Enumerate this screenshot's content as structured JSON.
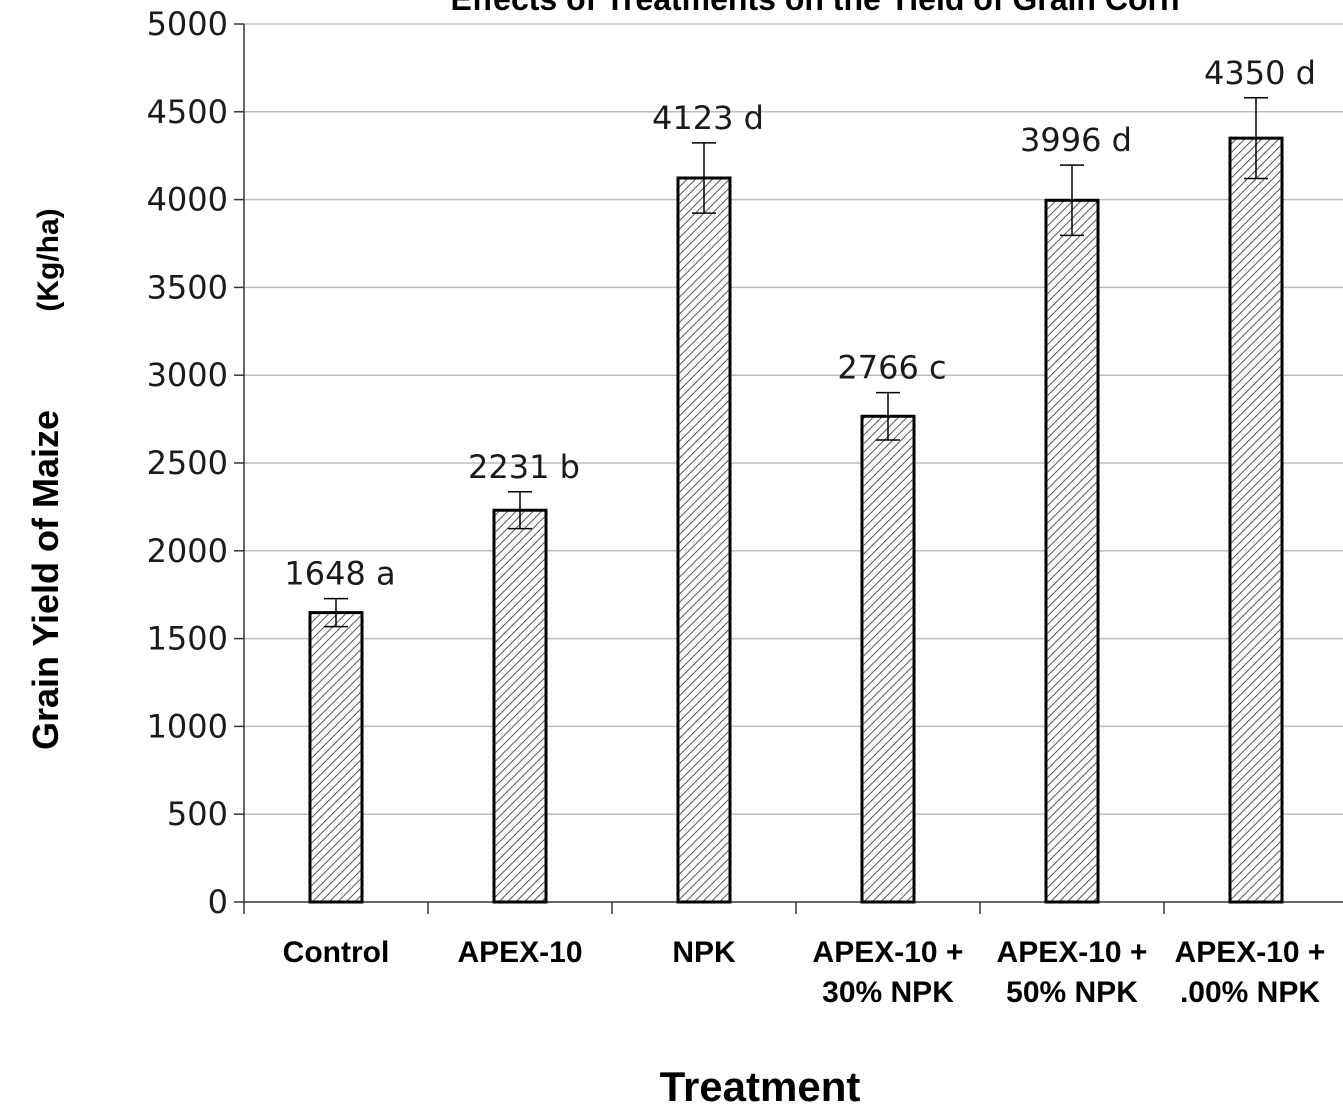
{
  "chart_data": {
    "type": "bar",
    "title": "Effects of Treatments on the Yield of Grain Corn",
    "categories": [
      [
        "Control"
      ],
      [
        "APEX-10"
      ],
      [
        "NPK"
      ],
      [
        "APEX-10 +",
        "30% NPK"
      ],
      [
        "APEX-10 +",
        "50% NPK"
      ],
      [
        "APEX-10 +",
        ".00% NPK"
      ]
    ],
    "values": [
      1648,
      2231,
      4123,
      2766,
      3996,
      4350
    ],
    "error": [
      80,
      105,
      200,
      135,
      200,
      230
    ],
    "data_labels": [
      "1648 a",
      "2231 b",
      "4123 d",
      "2766 c",
      "3996 d",
      "4350 d"
    ],
    "ylabel_main": "Grain Yield of Maize",
    "ylabel_unit": "(Kg/ha)",
    "xlabel": "Treatment",
    "ylim": [
      0,
      5000
    ],
    "ytick_step": 500,
    "grid": true,
    "bar_fill": "#ffffff",
    "bar_hatch": "#555555",
    "bar_edge": "#000000",
    "grid_color": "#bdbdbd"
  }
}
